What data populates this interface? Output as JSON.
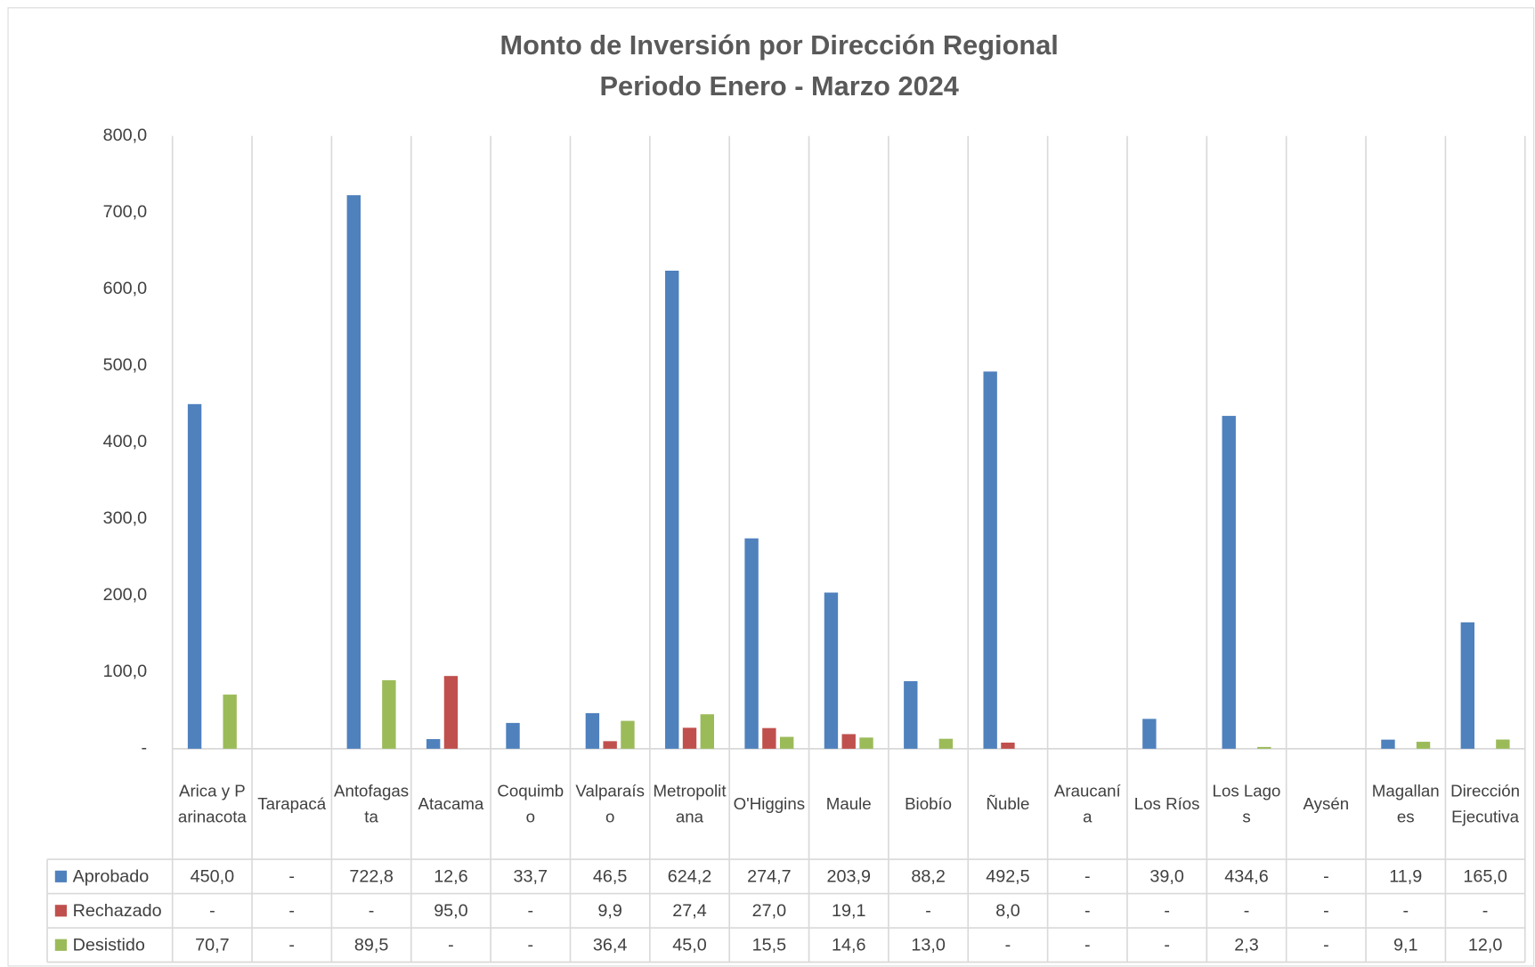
{
  "chart_data": {
    "type": "bar",
    "title": "Monto de Inversión por Dirección Regional",
    "subtitle": "Periodo Enero - Marzo 2024",
    "categories": [
      "Arica y Parinacota",
      "Tarapacá",
      "Antofagasta",
      "Atacama",
      "Coquimbo",
      "Valparaíso",
      "Metropolitana",
      "O'Higgins",
      "Maule",
      "Biobío",
      "Ñuble",
      "Araucanía",
      "Los Ríos",
      "Los Lagos",
      "Aysén",
      "Magallanes",
      "Dirección Ejecutiva"
    ],
    "series": [
      {
        "name": "Aprobado",
        "color": "#4f81bd",
        "values": [
          450.0,
          null,
          722.8,
          12.6,
          33.7,
          46.5,
          624.2,
          274.7,
          203.9,
          88.2,
          492.5,
          null,
          39.0,
          434.6,
          null,
          11.9,
          165.0
        ],
        "value_labels": [
          "450,0",
          "-",
          "722,8",
          "12,6",
          "33,7",
          "46,5",
          "624,2",
          "274,7",
          "203,9",
          "88,2",
          "492,5",
          "-",
          "39,0",
          "434,6",
          "-",
          "11,9",
          "165,0"
        ]
      },
      {
        "name": "Rechazado",
        "color": "#c0504d",
        "values": [
          null,
          null,
          null,
          95.0,
          null,
          9.9,
          27.4,
          27.0,
          19.1,
          null,
          8.0,
          null,
          null,
          null,
          null,
          null,
          null
        ],
        "value_labels": [
          "-",
          "-",
          "-",
          "95,0",
          "-",
          "9,9",
          "27,4",
          "27,0",
          "19,1",
          "-",
          "8,0",
          "-",
          "-",
          "-",
          "-",
          "-",
          "-"
        ]
      },
      {
        "name": "Desistido",
        "color": "#9bbb59",
        "values": [
          70.7,
          null,
          89.5,
          null,
          null,
          36.4,
          45.0,
          15.5,
          14.6,
          13.0,
          null,
          null,
          null,
          2.3,
          null,
          9.1,
          12.0
        ],
        "value_labels": [
          "70,7",
          "-",
          "89,5",
          "-",
          "-",
          "36,4",
          "45,0",
          "15,5",
          "14,6",
          "13,0",
          "-",
          "-",
          "-",
          "2,3",
          "-",
          "9,1",
          "12,0"
        ]
      }
    ],
    "ylim": [
      0,
      800
    ],
    "yticks": [
      {
        "value": 0,
        "label": "-"
      },
      {
        "value": 100,
        "label": "100,0"
      },
      {
        "value": 200,
        "label": "200,0"
      },
      {
        "value": 300,
        "label": "300,0"
      },
      {
        "value": 400,
        "label": "400,0"
      },
      {
        "value": 500,
        "label": "500,0"
      },
      {
        "value": 600,
        "label": "600,0"
      },
      {
        "value": 700,
        "label": "700,0"
      },
      {
        "value": 800,
        "label": "800,0"
      }
    ]
  }
}
